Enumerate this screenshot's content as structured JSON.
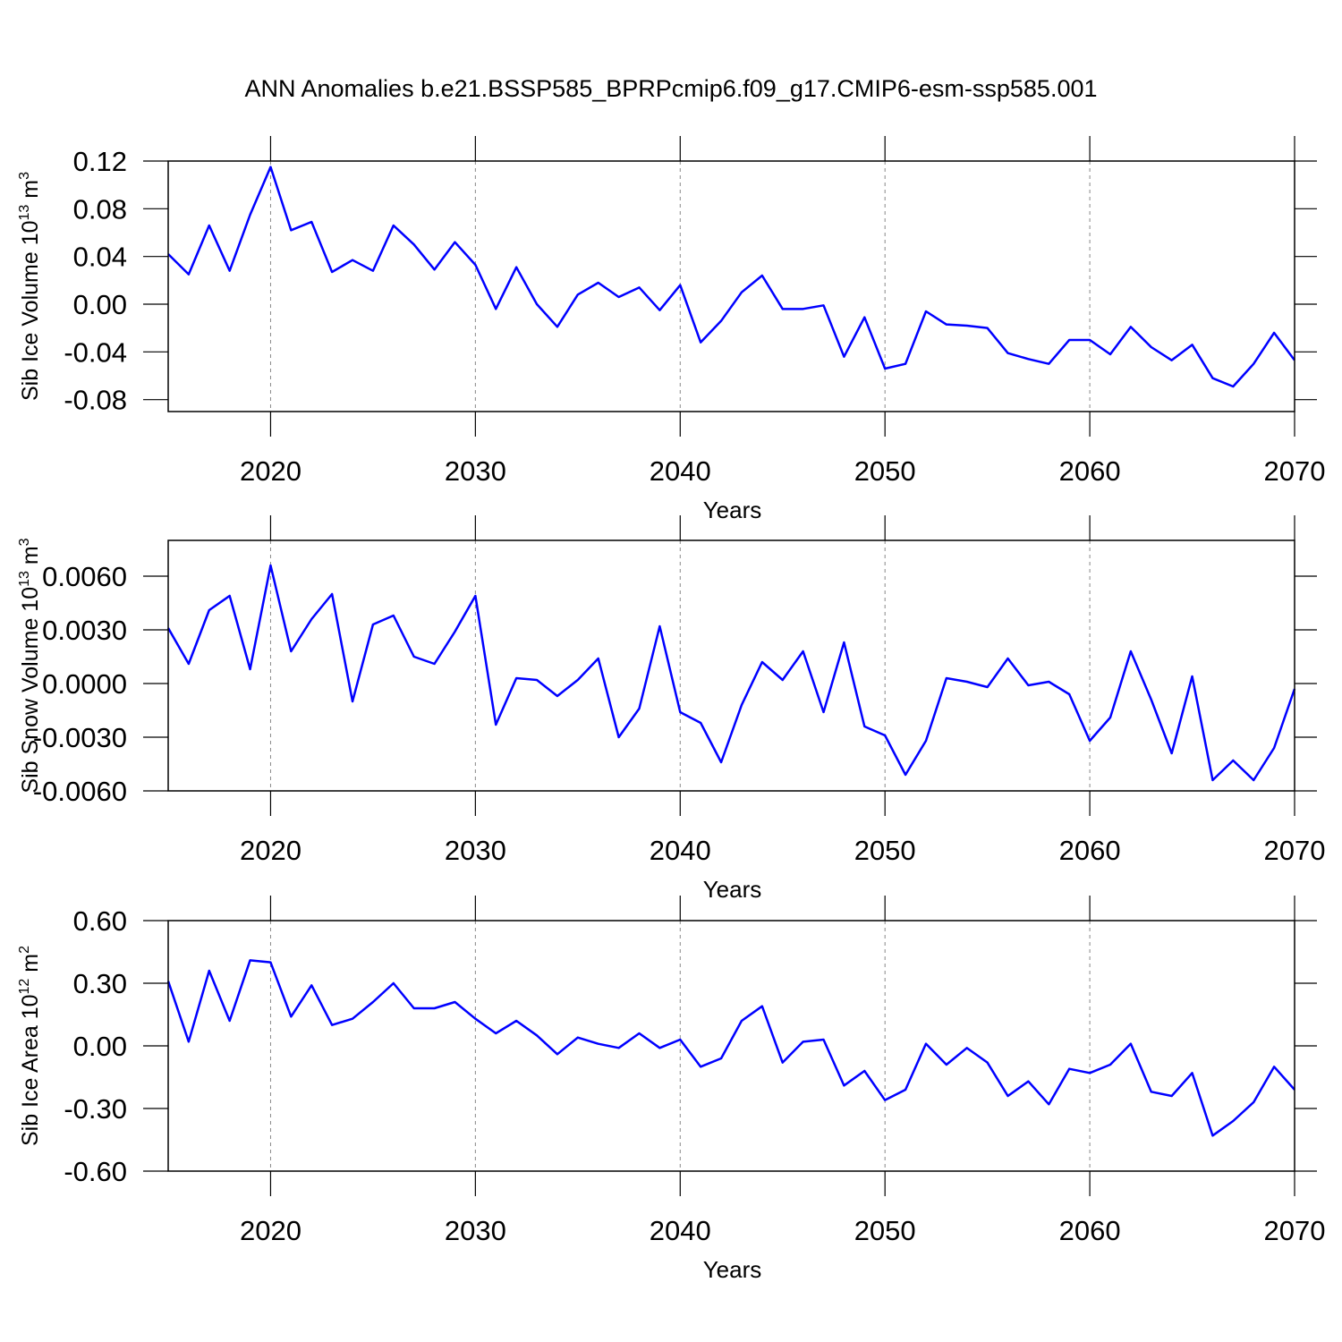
{
  "chart_data": [
    {
      "type": "line",
      "title": "ANN Anomalies b.e21.BSSP585_BPRPcmip6.f09_g17.CMIP6-esm-ssp585.001",
      "xlabel": "Years",
      "ylabel": "Sib Ice Volume 10",
      "ylabel_sup": "13",
      "ylabel_unit": " m",
      "ylabel_unit_sup": "3",
      "x": [
        2015,
        2016,
        2017,
        2018,
        2019,
        2020,
        2021,
        2022,
        2023,
        2024,
        2025,
        2026,
        2027,
        2028,
        2029,
        2030,
        2031,
        2032,
        2033,
        2034,
        2035,
        2036,
        2037,
        2038,
        2039,
        2040,
        2041,
        2042,
        2043,
        2044,
        2045,
        2046,
        2047,
        2048,
        2049,
        2050,
        2051,
        2052,
        2053,
        2054,
        2055,
        2056,
        2057,
        2058,
        2059,
        2060,
        2061,
        2062,
        2063,
        2064,
        2065,
        2066,
        2067,
        2068,
        2069,
        2070
      ],
      "series": [
        {
          "color": "#0000ff",
          "values": [
            0.042,
            0.025,
            0.066,
            0.028,
            0.075,
            0.115,
            0.062,
            0.069,
            0.027,
            0.037,
            0.028,
            0.066,
            0.05,
            0.029,
            0.052,
            0.033,
            -0.004,
            0.031,
            0.0,
            -0.019,
            0.008,
            0.018,
            0.006,
            0.014,
            -0.005,
            0.016,
            -0.032,
            -0.014,
            0.01,
            0.024,
            -0.004,
            -0.004,
            -0.001,
            -0.044,
            -0.011,
            -0.054,
            -0.05,
            -0.006,
            -0.017,
            -0.018,
            -0.02,
            -0.041,
            -0.046,
            -0.05,
            -0.03,
            -0.03,
            -0.042,
            -0.019,
            -0.036,
            -0.047,
            -0.034,
            -0.062,
            -0.069,
            -0.05,
            -0.024,
            -0.047
          ]
        }
      ],
      "xlim": [
        2015,
        2070
      ],
      "xticks": [
        2020,
        2030,
        2040,
        2050,
        2060,
        2070
      ],
      "ylim": [
        -0.09,
        0.12
      ],
      "yticks": [
        0.12,
        0.08,
        0.04,
        {
          "value": 0,
          "label": "0.00"
        },
        -0.04,
        -0.08
      ],
      "grid": "x"
    },
    {
      "type": "line",
      "xlabel": "Years",
      "ylabel": "Sib Snow Volume 10",
      "ylabel_sup": "13",
      "ylabel_unit": " m",
      "ylabel_unit_sup": "3",
      "x": [
        2015,
        2016,
        2017,
        2018,
        2019,
        2020,
        2021,
        2022,
        2023,
        2024,
        2025,
        2026,
        2027,
        2028,
        2029,
        2030,
        2031,
        2032,
        2033,
        2034,
        2035,
        2036,
        2037,
        2038,
        2039,
        2040,
        2041,
        2042,
        2043,
        2044,
        2045,
        2046,
        2047,
        2048,
        2049,
        2050,
        2051,
        2052,
        2053,
        2054,
        2055,
        2056,
        2057,
        2058,
        2059,
        2060,
        2061,
        2062,
        2063,
        2064,
        2065,
        2066,
        2067,
        2068,
        2069,
        2070
      ],
      "series": [
        {
          "color": "#0000ff",
          "values": [
            0.0031,
            0.0011,
            0.0041,
            0.0049,
            0.0008,
            0.0066,
            0.0018,
            0.0036,
            0.005,
            -0.001,
            0.0033,
            0.0038,
            0.0015,
            0.0011,
            0.0029,
            0.0049,
            -0.0023,
            0.0003,
            0.0002,
            -0.0007,
            0.0002,
            0.0014,
            -0.003,
            -0.0014,
            0.0032,
            -0.0016,
            -0.0022,
            -0.0044,
            -0.0012,
            0.0012,
            0.0002,
            0.0018,
            -0.0016,
            0.0023,
            -0.0024,
            -0.0029,
            -0.0051,
            -0.0032,
            0.0003,
            0.0001,
            -0.0002,
            0.0014,
            -0.0001,
            0.0001,
            -0.0006,
            -0.0032,
            -0.0019,
            0.0018,
            -0.0009,
            -0.0039,
            0.0004,
            -0.0054,
            -0.0043,
            -0.0054,
            -0.0036,
            -0.0003
          ]
        }
      ],
      "xlim": [
        2015,
        2070
      ],
      "xticks": [
        2020,
        2030,
        2040,
        2050,
        2060,
        2070
      ],
      "ylim": [
        -0.006,
        0.008
      ],
      "yticks": [
        {
          "value": 0.006,
          "label": "0.0060"
        },
        {
          "value": 0.003,
          "label": "0.0030"
        },
        {
          "value": 0,
          "label": "0.0000"
        },
        {
          "value": -0.003,
          "label": "-0.0030"
        },
        {
          "value": -0.006,
          "label": "-0.0060"
        }
      ],
      "grid": "x"
    },
    {
      "type": "line",
      "xlabel": "Years",
      "ylabel": "Sib Ice Area 10",
      "ylabel_sup": "12",
      "ylabel_unit": " m",
      "ylabel_unit_sup": "2",
      "x": [
        2015,
        2016,
        2017,
        2018,
        2019,
        2020,
        2021,
        2022,
        2023,
        2024,
        2025,
        2026,
        2027,
        2028,
        2029,
        2030,
        2031,
        2032,
        2033,
        2034,
        2035,
        2036,
        2037,
        2038,
        2039,
        2040,
        2041,
        2042,
        2043,
        2044,
        2045,
        2046,
        2047,
        2048,
        2049,
        2050,
        2051,
        2052,
        2053,
        2054,
        2055,
        2056,
        2057,
        2058,
        2059,
        2060,
        2061,
        2062,
        2063,
        2064,
        2065,
        2066,
        2067,
        2068,
        2069,
        2070
      ],
      "series": [
        {
          "color": "#0000ff",
          "values": [
            0.31,
            0.02,
            0.36,
            0.12,
            0.41,
            0.4,
            0.14,
            0.29,
            0.1,
            0.13,
            0.21,
            0.3,
            0.18,
            0.18,
            0.21,
            0.13,
            0.06,
            0.12,
            0.05,
            -0.04,
            0.04,
            0.01,
            -0.01,
            0.06,
            -0.01,
            0.03,
            -0.1,
            -0.06,
            0.12,
            0.19,
            -0.08,
            0.02,
            0.03,
            -0.19,
            -0.12,
            -0.26,
            -0.21,
            0.01,
            -0.09,
            -0.01,
            -0.08,
            -0.24,
            -0.17,
            -0.28,
            -0.11,
            -0.13,
            -0.09,
            0.01,
            -0.22,
            -0.24,
            -0.13,
            -0.43,
            -0.36,
            -0.27,
            -0.1,
            -0.21
          ]
        }
      ],
      "xlim": [
        2015,
        2070
      ],
      "xticks": [
        2020,
        2030,
        2040,
        2050,
        2060,
        2070
      ],
      "ylim": [
        -0.6,
        0.6
      ],
      "yticks": [
        {
          "value": 0.6,
          "label": "0.60"
        },
        {
          "value": 0.3,
          "label": "0.30"
        },
        {
          "value": 0,
          "label": "0.00"
        },
        {
          "value": -0.3,
          "label": "-0.30"
        },
        {
          "value": -0.6,
          "label": "-0.60"
        }
      ],
      "grid": "x"
    }
  ]
}
